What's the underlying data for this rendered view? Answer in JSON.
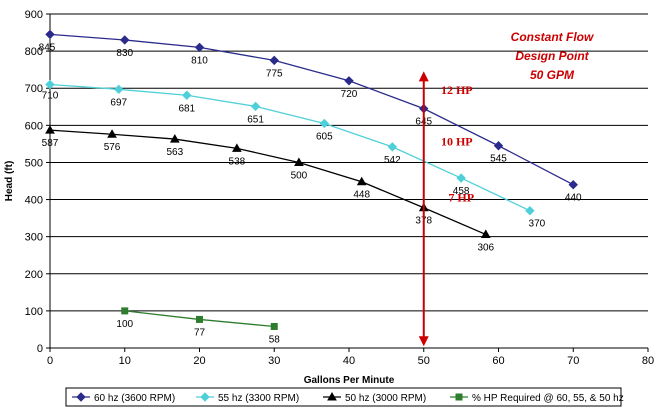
{
  "chart_data": {
    "type": "line",
    "title": "",
    "xlabel": "Gallons Per Minute",
    "ylabel": "Head (ft)",
    "xlim": [
      0,
      80
    ],
    "ylim": [
      0,
      900
    ],
    "x_ticks": [
      "0",
      "10",
      "20",
      "30",
      "40",
      "50",
      "60",
      "70",
      "80"
    ],
    "y_ticks": [
      "0",
      "100",
      "200",
      "300",
      "400",
      "500",
      "600",
      "700",
      "800",
      "900"
    ],
    "grid": "horizontal",
    "legend_position": "bottom",
    "series": [
      {
        "name": "60 hz (3600 RPM)",
        "color": "#2b2b8c",
        "marker": "diamond",
        "x": [
          0,
          10,
          20,
          30,
          40,
          50,
          60,
          70
        ],
        "y": [
          845,
          830,
          810,
          775,
          720,
          645,
          545,
          440
        ],
        "labels": [
          "845",
          "830",
          "810",
          "775",
          "720",
          "645",
          "545",
          "440"
        ]
      },
      {
        "name": "55 hz (3300 RPM)",
        "color": "#4fd0d8",
        "marker": "diamond",
        "x": [
          0,
          9.2,
          18.3,
          27.5,
          36.7,
          45.8,
          55,
          64.2
        ],
        "y": [
          710,
          697,
          681,
          651,
          605,
          542,
          458,
          370
        ],
        "labels": [
          "710",
          "697",
          "681",
          "651",
          "605",
          "542",
          "458",
          "370"
        ]
      },
      {
        "name": "50 hz (3000 RPM)",
        "color": "#000000",
        "marker": "triangle",
        "x": [
          0,
          8.3,
          16.7,
          25,
          33.3,
          41.7,
          50,
          58.3
        ],
        "y": [
          587,
          576,
          563,
          538,
          500,
          448,
          378,
          306
        ],
        "labels": [
          "587",
          "576",
          "563",
          "538",
          "500",
          "448",
          "378",
          "306"
        ]
      },
      {
        "name": "% HP Required @ 60, 55, & 50 hz",
        "color": "#2e7d2e",
        "marker": "square",
        "x": [
          10,
          20,
          30
        ],
        "y": [
          100,
          77,
          58
        ],
        "labels": [
          "100",
          "77",
          "58"
        ]
      }
    ],
    "annotations": {
      "design_arrow": {
        "x": 50,
        "y_from": 10,
        "y_to": 740,
        "color": "#cc0000"
      },
      "hp_labels": [
        {
          "text": "12 HP",
          "x": 52.3,
          "y": 685,
          "color": "#cc0000"
        },
        {
          "text": "10 HP",
          "x": 52.3,
          "y": 545,
          "color": "#cc0000"
        },
        {
          "text": "7 HP",
          "x": 53.3,
          "y": 395,
          "color": "#cc0000"
        }
      ],
      "design_note": [
        "Constant Flow",
        "Design Point",
        "50 GPM"
      ],
      "design_note_color": "#cc0000"
    }
  }
}
